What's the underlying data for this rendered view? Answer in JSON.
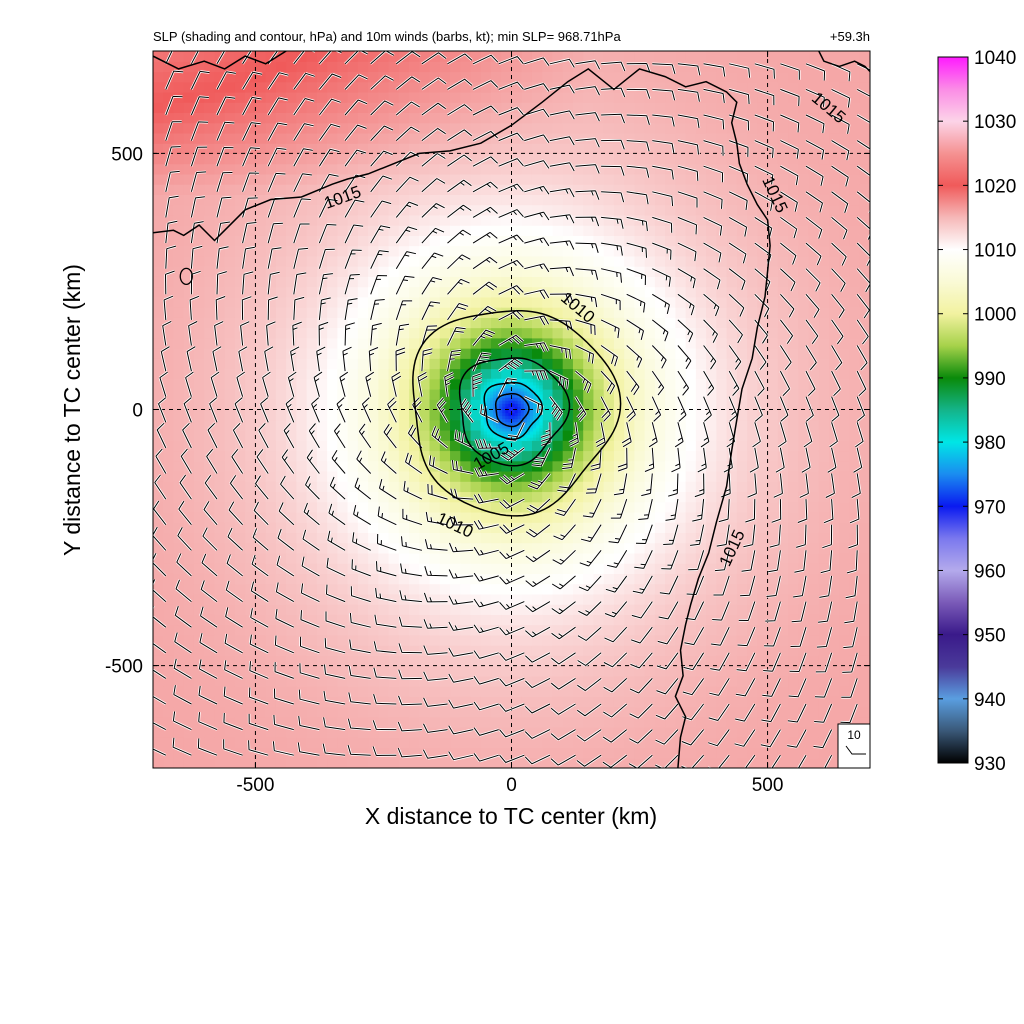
{
  "chart_data": {
    "type": "heatmap",
    "title": "SLP (shading and contour, hPa) and 10m winds (barbs, kt); min SLP= 968.71hPa",
    "time_label": "+59.3h",
    "xlabel": "X distance to TC center (km)",
    "ylabel": "Y distance to TC center (km)",
    "xlim": [
      -700,
      700
    ],
    "ylim": [
      -700,
      700
    ],
    "x_ticks": [
      -500,
      0,
      500
    ],
    "y_ticks": [
      -500,
      0,
      500
    ],
    "x_tick_labels": [
      "-500",
      "0",
      "500"
    ],
    "y_tick_labels": [
      "-500",
      "0",
      "500"
    ],
    "grid": true,
    "min_slp_hpa": 968.71,
    "center": [
      0,
      0
    ],
    "contour_levels": [
      1005,
      1010,
      1015
    ],
    "contour_labels": [
      "1005",
      "1010",
      "1010",
      "1015",
      "1015",
      "1015",
      "1015"
    ],
    "colorbar": {
      "min": 930,
      "max": 1040,
      "ticks": [
        930,
        940,
        950,
        960,
        970,
        980,
        990,
        1000,
        1010,
        1020,
        1030,
        1040
      ],
      "tick_labels": [
        "930",
        "940",
        "950",
        "960",
        "970",
        "980",
        "990",
        "1000",
        "1010",
        "1020",
        "1030",
        "1040"
      ],
      "colors": [
        {
          "v": 930,
          "c": "#000000"
        },
        {
          "v": 935,
          "c": "#3a5878"
        },
        {
          "v": 940,
          "c": "#5a9ee0"
        },
        {
          "v": 945,
          "c": "#4a3a9a"
        },
        {
          "v": 950,
          "c": "#3a1a8a"
        },
        {
          "v": 955,
          "c": "#7a5ab8"
        },
        {
          "v": 960,
          "c": "#b4aaec"
        },
        {
          "v": 965,
          "c": "#7a78ee"
        },
        {
          "v": 970,
          "c": "#0a1af0"
        },
        {
          "v": 975,
          "c": "#1a8cf0"
        },
        {
          "v": 980,
          "c": "#00e6e6"
        },
        {
          "v": 985,
          "c": "#14b48a"
        },
        {
          "v": 990,
          "c": "#0a8a0a"
        },
        {
          "v": 995,
          "c": "#a6d24a"
        },
        {
          "v": 1000,
          "c": "#f2f2a0"
        },
        {
          "v": 1005,
          "c": "#fafad6"
        },
        {
          "v": 1010,
          "c": "#ffffff"
        },
        {
          "v": 1015,
          "c": "#f6b8b8"
        },
        {
          "v": 1020,
          "c": "#f05a5a"
        },
        {
          "v": 1025,
          "c": "#f59292"
        },
        {
          "v": 1030,
          "c": "#fcd4e8"
        },
        {
          "v": 1035,
          "c": "#fb8ce6"
        },
        {
          "v": 1040,
          "c": "#ff1aff"
        }
      ]
    },
    "wind_barb_reference": {
      "label": "10",
      "speed_kt": 10
    },
    "wind_barb_spacing_km": 50,
    "wind_max_kt": 35
  }
}
